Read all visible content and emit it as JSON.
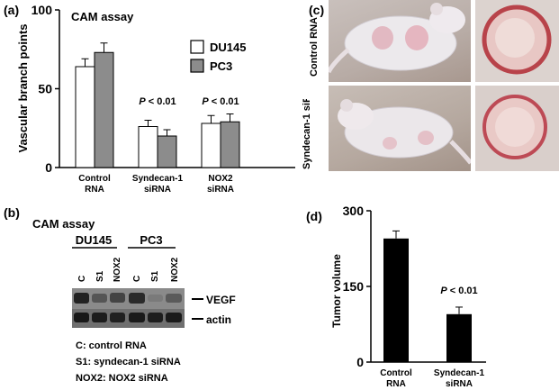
{
  "panel_a": {
    "label": "(a)",
    "title": "CAM assay",
    "ylabel": "Vascular branch points",
    "legend": [
      "DU145",
      "PC3"
    ],
    "annotations": [
      "P < 0.01",
      "P < 0.01"
    ]
  },
  "panel_b": {
    "label": "(b)",
    "title": "CAM assay",
    "cell_lines": [
      "DU145",
      "PC3"
    ],
    "lanes": [
      "C",
      "S1",
      "NOX2",
      "C",
      "S1",
      "NOX2"
    ],
    "bands": [
      "VEGF",
      "actin"
    ],
    "key": [
      "C: control RNA",
      "S1: syndecan-1 siRNA",
      "NOX2: NOX2 siRNA"
    ]
  },
  "panel_c": {
    "label": "(c)",
    "rows": [
      "Control RNA",
      "Syndecan-1 siRNA"
    ]
  },
  "panel_d": {
    "label": "(d)",
    "ylabel": "Tumor volume",
    "annotation": "P < 0.01"
  },
  "chart_data": [
    {
      "type": "bar",
      "title": "CAM assay",
      "ylabel": "Vascular branch points",
      "categories": [
        "Control RNA",
        "Syndecan-1 siRNA",
        "NOX2 siRNA"
      ],
      "series": [
        {
          "name": "DU145",
          "values": [
            64,
            26,
            28
          ],
          "errors": [
            5,
            4,
            5
          ],
          "color": "#ffffff"
        },
        {
          "name": "PC3",
          "values": [
            73,
            20,
            29
          ],
          "errors": [
            6,
            4,
            5
          ],
          "color": "#8c8c8c"
        }
      ],
      "ylim": [
        0,
        100
      ],
      "yticks": [
        0,
        50,
        100
      ],
      "legend": "top-right"
    },
    {
      "type": "bar",
      "ylabel": "Tumor volume",
      "categories": [
        "Control RNA",
        "Syndecan-1 siRNA"
      ],
      "values": [
        245,
        95
      ],
      "errors": [
        15,
        14
      ],
      "color": "#000000",
      "ylim": [
        0,
        300
      ],
      "yticks": [
        0,
        150,
        300
      ]
    }
  ]
}
